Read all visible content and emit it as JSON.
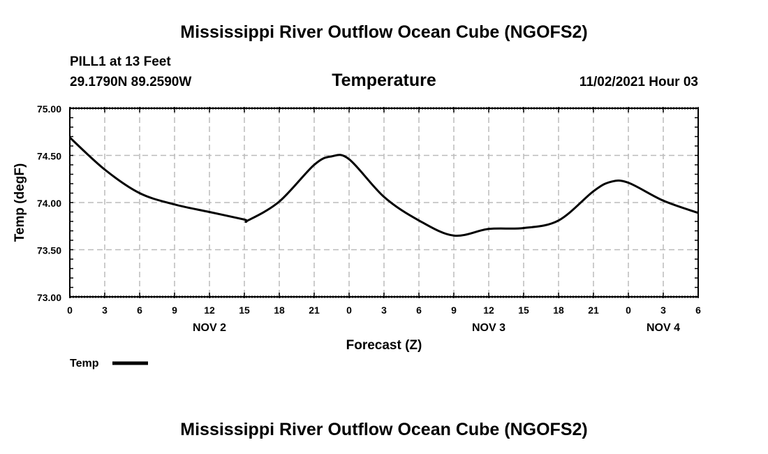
{
  "header": {
    "title": "Mississippi River Outflow Ocean Cube (NGOFS2)",
    "station": "PILL1 at 13 Feet",
    "coords": "29.1790N  89.2590W",
    "datetime": "11/02/2021 Hour 03",
    "footer_title": "Mississippi River Outflow Ocean Cube (NGOFS2)"
  },
  "chart_data": {
    "type": "line",
    "title": "Temperature",
    "xlabel": "Forecast (Z)",
    "ylabel": "Temp (degF)",
    "ylim": [
      73.0,
      75.0
    ],
    "xlim_hours": [
      0,
      54
    ],
    "yticks": [
      "73.00",
      "73.50",
      "74.00",
      "74.50",
      "75.00"
    ],
    "xtick_labels": [
      "0",
      "3",
      "6",
      "9",
      "12",
      "15",
      "18",
      "21",
      "0",
      "3",
      "6",
      "9",
      "12",
      "15",
      "18",
      "21",
      "0",
      "3",
      "6"
    ],
    "day_labels": [
      {
        "label": "NOV 2",
        "hour": 12
      },
      {
        "label": "NOV 3",
        "hour": 36
      },
      {
        "label": "NOV 4",
        "hour": 51
      }
    ],
    "grid": true,
    "legend": {
      "label": "Temp",
      "placement": "bottom-left"
    },
    "color": "#000000",
    "series": [
      {
        "name": "Temp",
        "x": [
          0,
          3,
          6,
          9,
          12,
          15,
          15.3,
          18,
          21,
          22.5,
          24,
          27,
          30,
          33,
          36,
          39,
          42,
          45,
          46.5,
          48,
          51,
          54
        ],
        "values": [
          74.69,
          74.35,
          74.1,
          73.98,
          73.9,
          73.82,
          73.81,
          74.01,
          74.4,
          74.49,
          74.46,
          74.06,
          73.81,
          73.65,
          73.72,
          73.73,
          73.81,
          74.12,
          74.22,
          74.21,
          74.02,
          73.89
        ]
      }
    ]
  }
}
